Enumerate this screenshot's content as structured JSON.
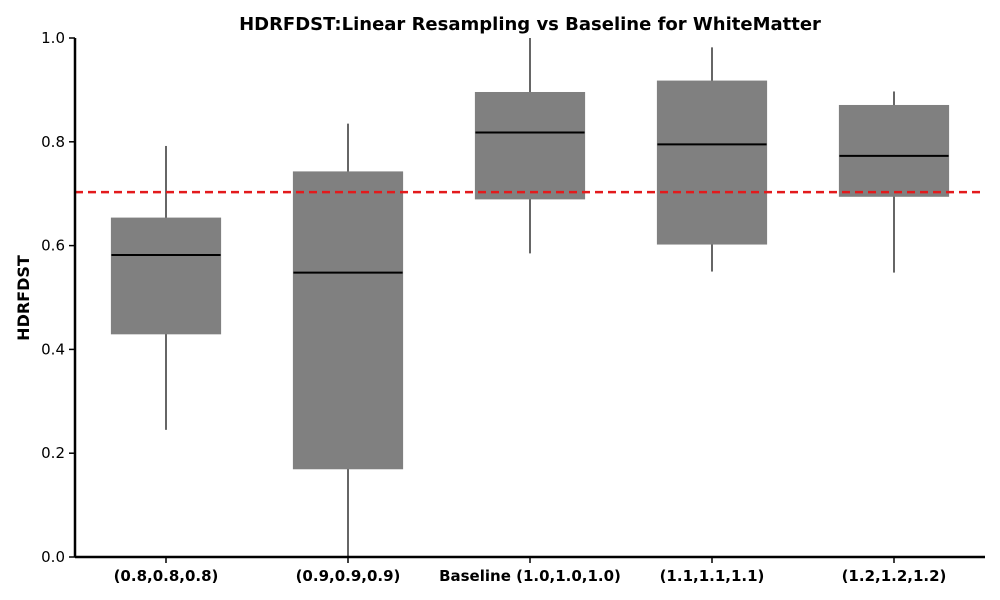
{
  "chart_data": {
    "type": "box",
    "title": "HDRFDST:Linear Resampling vs Baseline for WhiteMatter",
    "xlabel": "",
    "ylabel": "HDRFDST",
    "ylim": [
      0.0,
      1.0
    ],
    "yticks": [
      "0.0",
      "0.2",
      "0.4",
      "0.6",
      "0.8",
      "1.0"
    ],
    "categories": [
      "(0.8,0.8,0.8)",
      "(0.9,0.9,0.9)",
      "Baseline (1.0,1.0,1.0)",
      "(1.1,1.1,1.1)",
      "(1.2,1.2,1.2)"
    ],
    "boxes": [
      {
        "whisker_low": 0.245,
        "q1": 0.43,
        "median": 0.582,
        "q3": 0.653,
        "whisker_high": 0.792
      },
      {
        "whisker_low": 0.0,
        "q1": 0.17,
        "median": 0.548,
        "q3": 0.742,
        "whisker_high": 0.835
      },
      {
        "whisker_low": 0.585,
        "q1": 0.69,
        "median": 0.818,
        "q3": 0.895,
        "whisker_high": 1.0
      },
      {
        "whisker_low": 0.55,
        "q1": 0.603,
        "median": 0.795,
        "q3": 0.917,
        "whisker_high": 0.982
      },
      {
        "whisker_low": 0.548,
        "q1": 0.695,
        "median": 0.773,
        "q3": 0.87,
        "whisker_high": 0.897
      }
    ],
    "reference_line": {
      "value": 0.703,
      "style": "dashed",
      "color": "#e31a1c"
    },
    "box_color": "#808080",
    "median_color": "#000000",
    "grid": false,
    "legend": "none"
  }
}
